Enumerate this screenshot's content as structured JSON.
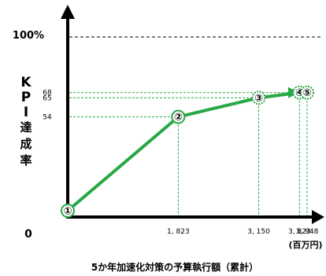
{
  "chart_data": {
    "type": "line",
    "title": "5か年加速化対策の予算執行額（累計）",
    "xlabel_unit": "(百万円)",
    "ylabel_chars": [
      "K",
      "P",
      "I",
      "達",
      "成",
      "率"
    ],
    "origin_label": "0",
    "max_label": "100%",
    "max_value": 100,
    "xlim": [
      0,
      4400
    ],
    "ylim": [
      0,
      100
    ],
    "points": [
      {
        "marker": "①",
        "x": 0,
        "y": 0,
        "x_label": "",
        "y_label": ""
      },
      {
        "marker": "②",
        "x": 1823,
        "y": 54,
        "x_label": "1, 823",
        "y_label": "54"
      },
      {
        "marker": "③",
        "x": 3150,
        "y": 65,
        "x_label": "3, 150",
        "y_label": "65"
      },
      {
        "marker": "④",
        "x": 3823,
        "y": 68,
        "x_label": "3, 823",
        "y_label": "68"
      },
      {
        "marker": "⑤",
        "x": 3948,
        "y": 68,
        "x_label": "3, 948",
        "y_label": ""
      }
    ],
    "projected_segment": [
      "④",
      "⑤"
    ],
    "colors": {
      "line": "#28a745",
      "marker_fill": "#ffffff",
      "guide": "#28a745",
      "max_line": "#000000",
      "axis": "#000000"
    },
    "grid": false
  }
}
